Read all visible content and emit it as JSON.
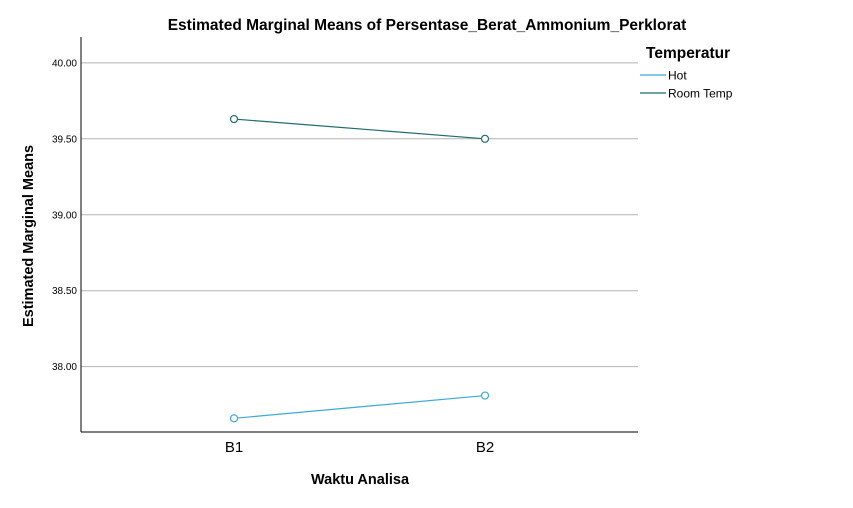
{
  "chart_data": {
    "type": "line",
    "title": "Estimated Marginal Means of Persentase_Berat_Ammonium_Perklorat",
    "xlabel": "Waktu Analisa",
    "ylabel": "Estimated Marginal Means",
    "categories": [
      "B1",
      "B2"
    ],
    "ylim": [
      37.57,
      40.17
    ],
    "yticks": [
      "38.00",
      "38.50",
      "39.00",
      "39.50",
      "40.00"
    ],
    "grid": true,
    "legend": {
      "title": "Temperatur",
      "placement": "top-right"
    },
    "series": [
      {
        "name": "Hot",
        "values": [
          37.66,
          37.81
        ],
        "color": "#3fa9d6"
      },
      {
        "name": "Room Temp",
        "values": [
          39.63,
          39.5
        ],
        "color": "#1f6b6e"
      }
    ]
  }
}
